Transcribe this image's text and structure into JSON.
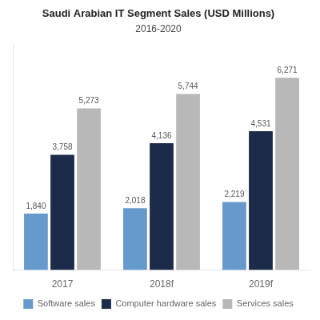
{
  "chart_data": {
    "type": "bar",
    "title": "Saudi Arabian IT Segment Sales (USD Millions)",
    "subtitle": "2016-2020",
    "categories": [
      "2017",
      "2018f",
      "2019f"
    ],
    "series": [
      {
        "name": "Software sales",
        "color": "#6699cc",
        "values": [
          1840,
          2018,
          2219
        ],
        "value_labels": [
          "1,840",
          "2,018",
          "2,219"
        ]
      },
      {
        "name": "Computer hardware sales",
        "color": "#1c2b4a",
        "values": [
          3758,
          4136,
          4531
        ],
        "value_labels": [
          "3,758",
          "4,136",
          "4,531"
        ]
      },
      {
        "name": "Services sales",
        "color": "#b8b8b8",
        "values": [
          5273,
          5744,
          6271
        ],
        "value_labels": [
          "5,273",
          "5,744",
          "6,271"
        ]
      }
    ],
    "ylim": [
      0,
      7400
    ],
    "grid": false,
    "legend": "bottom",
    "data_labels": true,
    "tick_labels": "x"
  }
}
